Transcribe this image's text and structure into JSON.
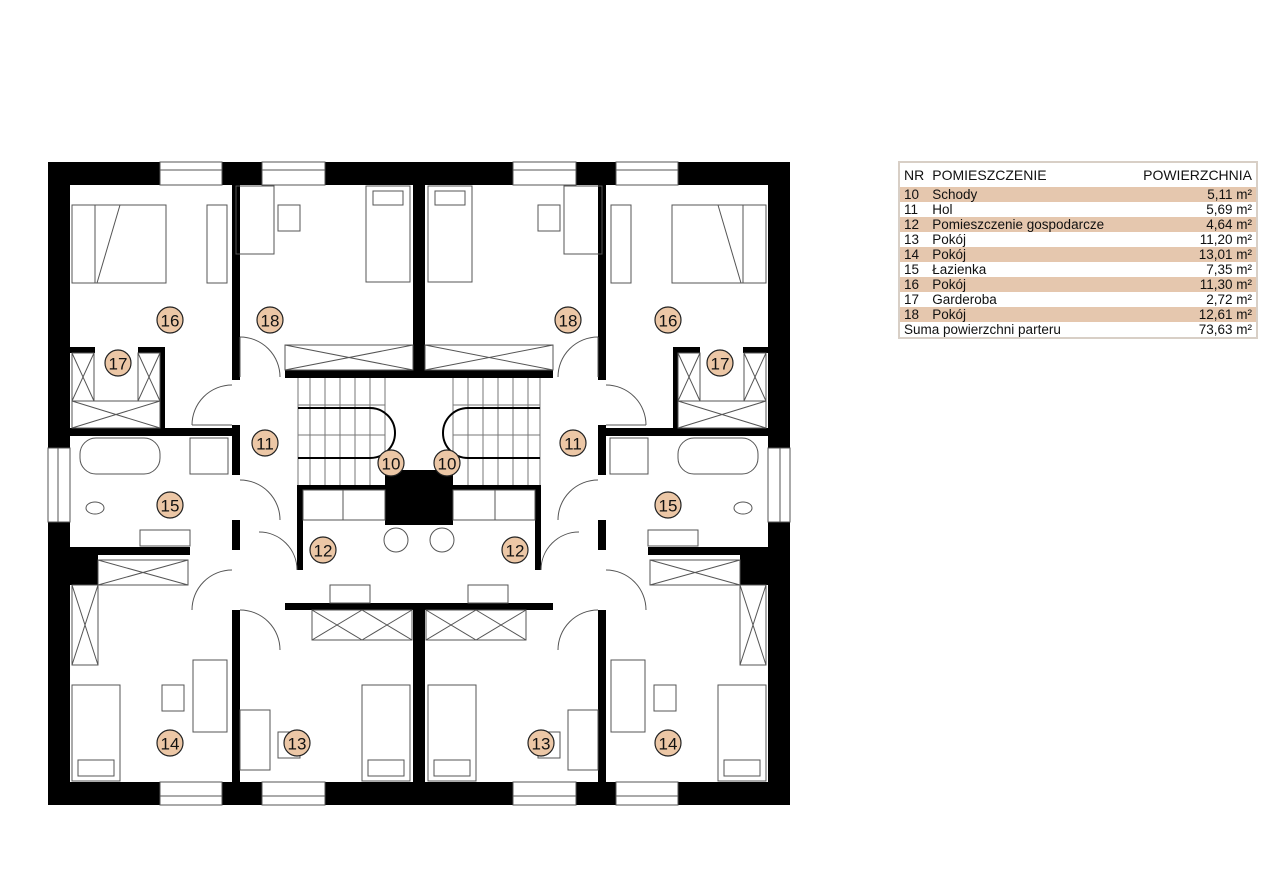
{
  "colors": {
    "wall": "#000000",
    "room_badge": "#ecc7a6",
    "table_stripe": "#e5c7ae",
    "table_border": "#d8cfc6"
  },
  "plan": {
    "labels": {
      "r16": "16",
      "r18": "18",
      "r17": "17",
      "r11": "11",
      "r10": "10",
      "r15": "15",
      "r12": "12",
      "r14": "14",
      "r13": "13"
    }
  },
  "table": {
    "headers": {
      "nr": "NR",
      "name": "POMIESZCZENIE",
      "area": "POWIERZCHNIA"
    },
    "rows": [
      {
        "nr": "10",
        "name": "Schody",
        "area": "5,11 m²"
      },
      {
        "nr": "11",
        "name": "Hol",
        "area": "5,69 m²"
      },
      {
        "nr": "12",
        "name": "Pomieszczenie gospodarcze",
        "area": "4,64 m²"
      },
      {
        "nr": "13",
        "name": "Pokój",
        "area": "11,20 m²"
      },
      {
        "nr": "14",
        "name": "Pokój",
        "area": "13,01 m²"
      },
      {
        "nr": "15",
        "name": "Łazienka",
        "area": "7,35 m²"
      },
      {
        "nr": "16",
        "name": "Pokój",
        "area": "11,30 m²"
      },
      {
        "nr": "17",
        "name": "Garderoba",
        "area": "2,72 m²"
      },
      {
        "nr": "18",
        "name": "Pokój",
        "area": "12,61 m²"
      }
    ],
    "total": {
      "label": "Suma powierzchni parteru",
      "area": "73,63 m²"
    }
  }
}
